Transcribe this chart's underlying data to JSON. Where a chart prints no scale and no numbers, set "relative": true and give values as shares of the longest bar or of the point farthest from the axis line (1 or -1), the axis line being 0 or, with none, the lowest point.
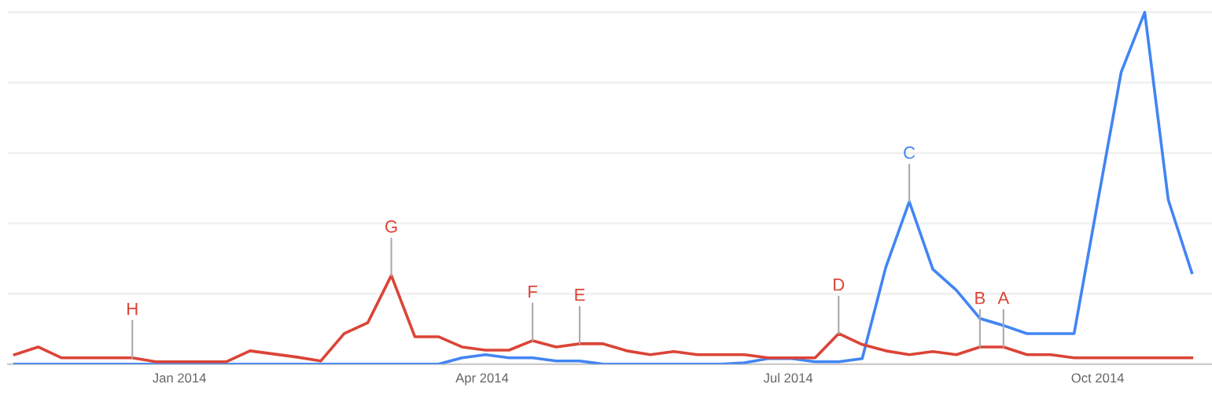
{
  "chart_data": {
    "type": "line",
    "relative": true,
    "grid": "y",
    "tick_labels": "x",
    "marker": "none",
    "line_style": "solid",
    "x": [
      "2013-11-13",
      "2013-11-20",
      "2013-11-27",
      "2013-12-04",
      "2013-12-11",
      "2013-12-18",
      "2013-12-25",
      "2014-01-01",
      "2014-01-08",
      "2014-01-15",
      "2014-01-22",
      "2014-01-29",
      "2014-02-05",
      "2014-02-12",
      "2014-02-19",
      "2014-02-26",
      "2014-03-05",
      "2014-03-12",
      "2014-03-19",
      "2014-03-26",
      "2014-04-02",
      "2014-04-09",
      "2014-04-16",
      "2014-04-23",
      "2014-04-30",
      "2014-05-07",
      "2014-05-14",
      "2014-05-21",
      "2014-05-28",
      "2014-06-04",
      "2014-06-11",
      "2014-06-18",
      "2014-06-25",
      "2014-07-02",
      "2014-07-09",
      "2014-07-16",
      "2014-07-23",
      "2014-07-30",
      "2014-08-06",
      "2014-08-13",
      "2014-08-20",
      "2014-08-27",
      "2014-09-03",
      "2014-09-10",
      "2014-09-17",
      "2014-09-24",
      "2014-10-01",
      "2014-10-08",
      "2014-10-15",
      "2014-10-22",
      "2014-10-29"
    ],
    "xlim": [
      "2013-11-11",
      "2014-11-04"
    ],
    "xticks": [
      {
        "value": "2014-01-01",
        "label": "Jan 2014"
      },
      {
        "value": "2014-04-01",
        "label": "Apr 2014"
      },
      {
        "value": "2014-07-01",
        "label": "Jul 2014"
      },
      {
        "value": "2014-10-01",
        "label": "Oct 2014"
      }
    ],
    "series": [
      {
        "color": "#4285f4",
        "values": [
          0,
          0,
          0,
          0,
          0,
          0,
          0,
          0,
          0,
          0,
          0,
          0,
          0,
          0,
          0,
          0,
          0,
          0,
          0,
          0.018,
          0.027,
          0.018,
          0.018,
          0.009,
          0.009,
          0,
          0,
          0,
          0,
          0,
          0,
          0.004,
          0.016,
          0.016,
          0.007,
          0.007,
          0.016,
          0.275,
          0.462,
          0.27,
          0.21,
          0.13,
          0.11,
          0.087,
          0.087,
          0.087,
          0.46,
          0.83,
          1,
          0.467,
          0.26
        ]
      },
      {
        "color": "#db4437",
        "values": [
          0.027,
          0.049,
          0.018,
          0.018,
          0.018,
          0.018,
          0.007,
          0.007,
          0.007,
          0.007,
          0.038,
          0.029,
          0.02,
          0.009,
          0.087,
          0.118,
          0.252,
          0.078,
          0.078,
          0.049,
          0.04,
          0.04,
          0.067,
          0.049,
          0.058,
          0.058,
          0.038,
          0.027,
          0.036,
          0.027,
          0.027,
          0.027,
          0.018,
          0.018,
          0.018,
          0.087,
          0.056,
          0.038,
          0.027,
          0.036,
          0.027,
          0.049,
          0.049,
          0.027,
          0.027,
          0.018,
          0.018,
          0.018,
          0.018,
          0.018,
          0.018
        ]
      }
    ],
    "annotations": [
      {
        "text": "H",
        "x": "2013-12-18",
        "y": 0.018
      },
      {
        "text": "G",
        "x": "2014-03-05",
        "y": 0.252
      },
      {
        "text": "F",
        "x": "2014-04-16",
        "y": 0.067
      },
      {
        "text": "E",
        "x": "2014-04-30",
        "y": 0.058
      },
      {
        "text": "D",
        "x": "2014-07-16",
        "y": 0.087
      },
      {
        "text": "C",
        "x": "2014-08-06",
        "y": 0.462
      },
      {
        "text": "B",
        "x": "2014-08-27",
        "y": 0.049
      },
      {
        "text": "A",
        "x": "2014-09-03",
        "y": 0.049
      }
    ]
  }
}
